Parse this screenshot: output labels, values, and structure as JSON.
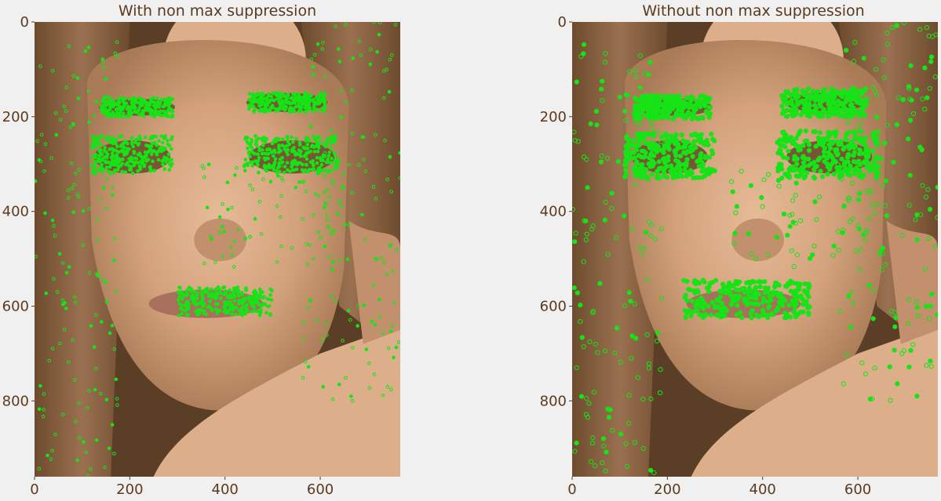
{
  "colors": {
    "background": "#f0f0f0",
    "text": "#5b3a1e",
    "keypoint": "#17e317",
    "image_base": "#5a3f26",
    "skin_light": "#dcae8a",
    "skin_mid": "#c2906c",
    "hair": "#7a5535"
  },
  "chart_data": [
    {
      "type": "image-with-keypoints",
      "title": "With non max suppression",
      "xlim": [
        0,
        768
      ],
      "ylim": [
        960,
        0
      ],
      "xticks": [
        0,
        200,
        400,
        600
      ],
      "yticks": [
        0,
        200,
        400,
        600,
        800
      ],
      "grid": false,
      "keypoint_marker": "small circles",
      "keypoint_regions": [
        {
          "name": "left eyebrow",
          "x": [
            140,
            290
          ],
          "y": [
            160,
            200
          ],
          "density": "high"
        },
        {
          "name": "right eyebrow",
          "x": [
            450,
            610
          ],
          "y": [
            150,
            190
          ],
          "density": "high"
        },
        {
          "name": "left eye",
          "x": [
            120,
            290
          ],
          "y": [
            240,
            320
          ],
          "density": "high"
        },
        {
          "name": "right eye",
          "x": [
            440,
            640
          ],
          "y": [
            240,
            320
          ],
          "density": "high"
        },
        {
          "name": "lips",
          "x": [
            300,
            500
          ],
          "y": [
            560,
            620
          ],
          "density": "high"
        },
        {
          "name": "left hair",
          "x": [
            0,
            180
          ],
          "y": [
            40,
            960
          ],
          "density": "medium"
        },
        {
          "name": "right hair",
          "x": [
            560,
            768
          ],
          "y": [
            0,
            800
          ],
          "density": "medium"
        },
        {
          "name": "cheek freckles",
          "x": [
            350,
            650
          ],
          "y": [
            300,
            520
          ],
          "density": "low"
        }
      ]
    },
    {
      "type": "image-with-keypoints",
      "title": "Without non max suppression",
      "xlim": [
        0,
        768
      ],
      "ylim": [
        960,
        0
      ],
      "xticks": [
        0,
        200,
        400,
        600
      ],
      "yticks": [
        0,
        200,
        400,
        600,
        800
      ],
      "grid": false,
      "keypoint_marker": "small circles",
      "keypoint_regions": [
        {
          "name": "left eyebrow",
          "x": [
            130,
            290
          ],
          "y": [
            155,
            205
          ],
          "density": "high"
        },
        {
          "name": "right eyebrow",
          "x": [
            440,
            620
          ],
          "y": [
            140,
            200
          ],
          "density": "high"
        },
        {
          "name": "left eye",
          "x": [
            110,
            300
          ],
          "y": [
            235,
            330
          ],
          "density": "high"
        },
        {
          "name": "right eye",
          "x": [
            430,
            650
          ],
          "y": [
            230,
            330
          ],
          "density": "high"
        },
        {
          "name": "lips",
          "x": [
            230,
            500
          ],
          "y": [
            545,
            625
          ],
          "density": "high"
        },
        {
          "name": "left hair",
          "x": [
            0,
            190
          ],
          "y": [
            40,
            960
          ],
          "density": "medium"
        },
        {
          "name": "right hair",
          "x": [
            560,
            768
          ],
          "y": [
            0,
            800
          ],
          "density": "medium"
        },
        {
          "name": "cheek freckles",
          "x": [
            330,
            660
          ],
          "y": [
            300,
            520
          ],
          "density": "low"
        }
      ]
    }
  ]
}
